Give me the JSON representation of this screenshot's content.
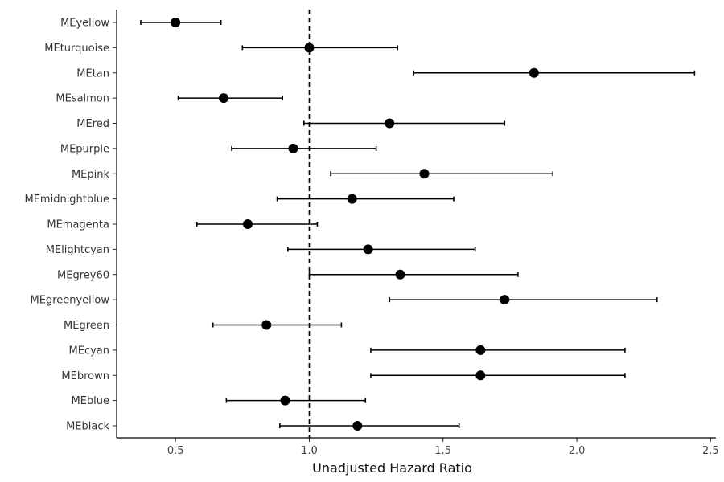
{
  "chart_data": {
    "type": "scatter",
    "subtype": "forest-plot",
    "xlabel": "Unadjusted Hazard Ratio",
    "ylabel": "",
    "xlim": [
      0.28,
      2.52
    ],
    "xticks": [
      0.5,
      1.0,
      1.5,
      2.0,
      2.5
    ],
    "xtick_labels": [
      "0.5",
      "1.0",
      "1.5",
      "2.0",
      "2.5"
    ],
    "reference_line": 1.0,
    "grid": false,
    "color": "#000000",
    "categories": [
      "MEyellow",
      "MEturquoise",
      "MEtan",
      "MEsalmon",
      "MEred",
      "MEpurple",
      "MEpink",
      "MEmidnightblue",
      "MEmagenta",
      "MElightcyan",
      "MEgrey60",
      "MEgreenyellow",
      "MEgreen",
      "MEcyan",
      "MEbrown",
      "MEblue",
      "MEblack"
    ],
    "estimates": [
      0.5,
      1.0,
      1.84,
      0.68,
      1.3,
      0.94,
      1.43,
      1.16,
      0.77,
      1.22,
      1.34,
      1.73,
      0.84,
      1.64,
      1.64,
      0.91,
      1.18
    ],
    "lower": [
      0.37,
      0.75,
      1.39,
      0.51,
      0.98,
      0.71,
      1.08,
      0.88,
      0.58,
      0.92,
      1.0,
      1.3,
      0.64,
      1.23,
      1.23,
      0.69,
      0.89
    ],
    "upper": [
      0.67,
      1.33,
      2.44,
      0.9,
      1.73,
      1.25,
      1.91,
      1.54,
      1.03,
      1.62,
      1.78,
      2.3,
      1.12,
      2.18,
      2.18,
      1.21,
      1.56
    ]
  }
}
